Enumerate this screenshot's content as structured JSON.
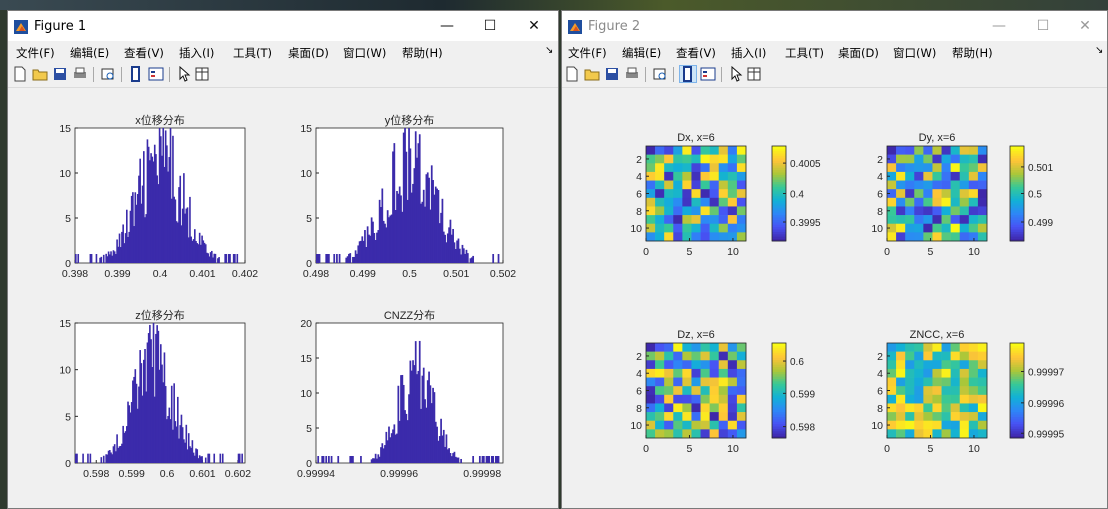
{
  "figure1": {
    "title": "Figure 1",
    "controls": {
      "minimize": "—",
      "maximize": "☐",
      "close": "✕"
    },
    "menu": [
      "文件(F)",
      "编辑(E)",
      "查看(V)",
      "插入(I)",
      "工具(T)",
      "桌面(D)",
      "窗口(W)",
      "帮助(H)"
    ]
  },
  "figure2": {
    "title": "Figure 2",
    "controls": {
      "minimize": "—",
      "maximize": "☐",
      "close": "✕"
    },
    "menu": [
      "文件(F)",
      "编辑(E)",
      "查看(V)",
      "插入(I)",
      "工具(T)",
      "桌面(D)",
      "窗口(W)",
      "帮助(H)"
    ]
  },
  "toolbar_icons": [
    "new-file-icon",
    "open-folder-icon",
    "save-icon",
    "print-icon",
    "print-preview-icon",
    "colorbar-icon",
    "legend-icon",
    "pointer-icon",
    "property-inspector-icon"
  ],
  "chart_data": [
    {
      "type": "bar",
      "figure": "Figure 1",
      "title": "x位移分布",
      "xlim": [
        0.398,
        0.402
      ],
      "ylim": [
        0,
        15
      ],
      "xticks": [
        "0.398",
        "0.399",
        "0.4",
        "0.401",
        "0.402"
      ],
      "yticks": [
        "0",
        "5",
        "10",
        "15"
      ],
      "color": "#3b2bab",
      "distribution": {
        "center": 0.4,
        "spread": 0.00055,
        "peak": 13
      }
    },
    {
      "type": "bar",
      "figure": "Figure 1",
      "title": "y位移分布",
      "xlim": [
        0.498,
        0.502
      ],
      "ylim": [
        0,
        15
      ],
      "xticks": [
        "0.498",
        "0.499",
        "0.5",
        "0.501",
        "0.502"
      ],
      "yticks": [
        "0",
        "5",
        "10",
        "15"
      ],
      "color": "#3b2bab",
      "distribution": {
        "center": 0.5,
        "spread": 0.00055,
        "peak": 13
      }
    },
    {
      "type": "bar",
      "figure": "Figure 1",
      "title": "z位移分布",
      "xlim": [
        0.5974,
        0.6022
      ],
      "ylim": [
        0,
        15
      ],
      "xticks": [
        "0.598",
        "0.599",
        "0.6",
        "0.601",
        "0.602"
      ],
      "tickvals": [
        0.598,
        0.599,
        0.6,
        0.601,
        0.602
      ],
      "yticks": [
        "0",
        "5",
        "10",
        "15"
      ],
      "color": "#3b2bab",
      "distribution": {
        "center": 0.5996,
        "spread": 0.00058,
        "peak": 12
      }
    },
    {
      "type": "bar",
      "figure": "Figure 1",
      "title": "CNZZ分布",
      "xlim": [
        0.99994,
        0.999985
      ],
      "ylim": [
        0,
        20
      ],
      "xticks": [
        "0.99994",
        "0.99996",
        "0.99998"
      ],
      "tickvals": [
        0.99994,
        0.99996,
        0.99998
      ],
      "yticks": [
        "0",
        "5",
        "10",
        "15",
        "20"
      ],
      "color": "#3b2bab",
      "distribution": {
        "center": 0.999964,
        "spread": 4.2e-06,
        "peak": 15
      }
    },
    {
      "type": "heatmap",
      "figure": "Figure 2",
      "title": "Dx, x=6",
      "xticks": [
        "0",
        "5",
        "10"
      ],
      "yticks": [
        "2",
        "4",
        "6",
        "8",
        "10"
      ],
      "colorbar_ticks": [
        "0.4005",
        "0.4",
        "0.3995"
      ],
      "colorbar_fracs": [
        0.82,
        0.5,
        0.2
      ]
    },
    {
      "type": "heatmap",
      "figure": "Figure 2",
      "title": "Dy, x=6",
      "xticks": [
        "0",
        "5",
        "10"
      ],
      "yticks": [
        "2",
        "4",
        "6",
        "8",
        "10"
      ],
      "colorbar_ticks": [
        "0.501",
        "0.5",
        "0.499"
      ],
      "colorbar_fracs": [
        0.78,
        0.5,
        0.2
      ]
    },
    {
      "type": "heatmap",
      "figure": "Figure 2",
      "title": "Dz, x=6",
      "xticks": [
        "0",
        "5",
        "10"
      ],
      "yticks": [
        "2",
        "4",
        "6",
        "8",
        "10"
      ],
      "colorbar_ticks": [
        "0.6",
        "0.599",
        "0.598"
      ],
      "colorbar_fracs": [
        0.81,
        0.47,
        0.12
      ]
    },
    {
      "type": "heatmap",
      "figure": "Figure 2",
      "title": "ZNCC, x=6",
      "xticks": [
        "0",
        "5",
        "10"
      ],
      "yticks": [
        "2",
        "4",
        "6",
        "8",
        "10"
      ],
      "colorbar_ticks": [
        "0.99997",
        "0.99996",
        "0.99995"
      ],
      "colorbar_fracs": [
        0.7,
        0.37,
        0.05
      ]
    }
  ]
}
